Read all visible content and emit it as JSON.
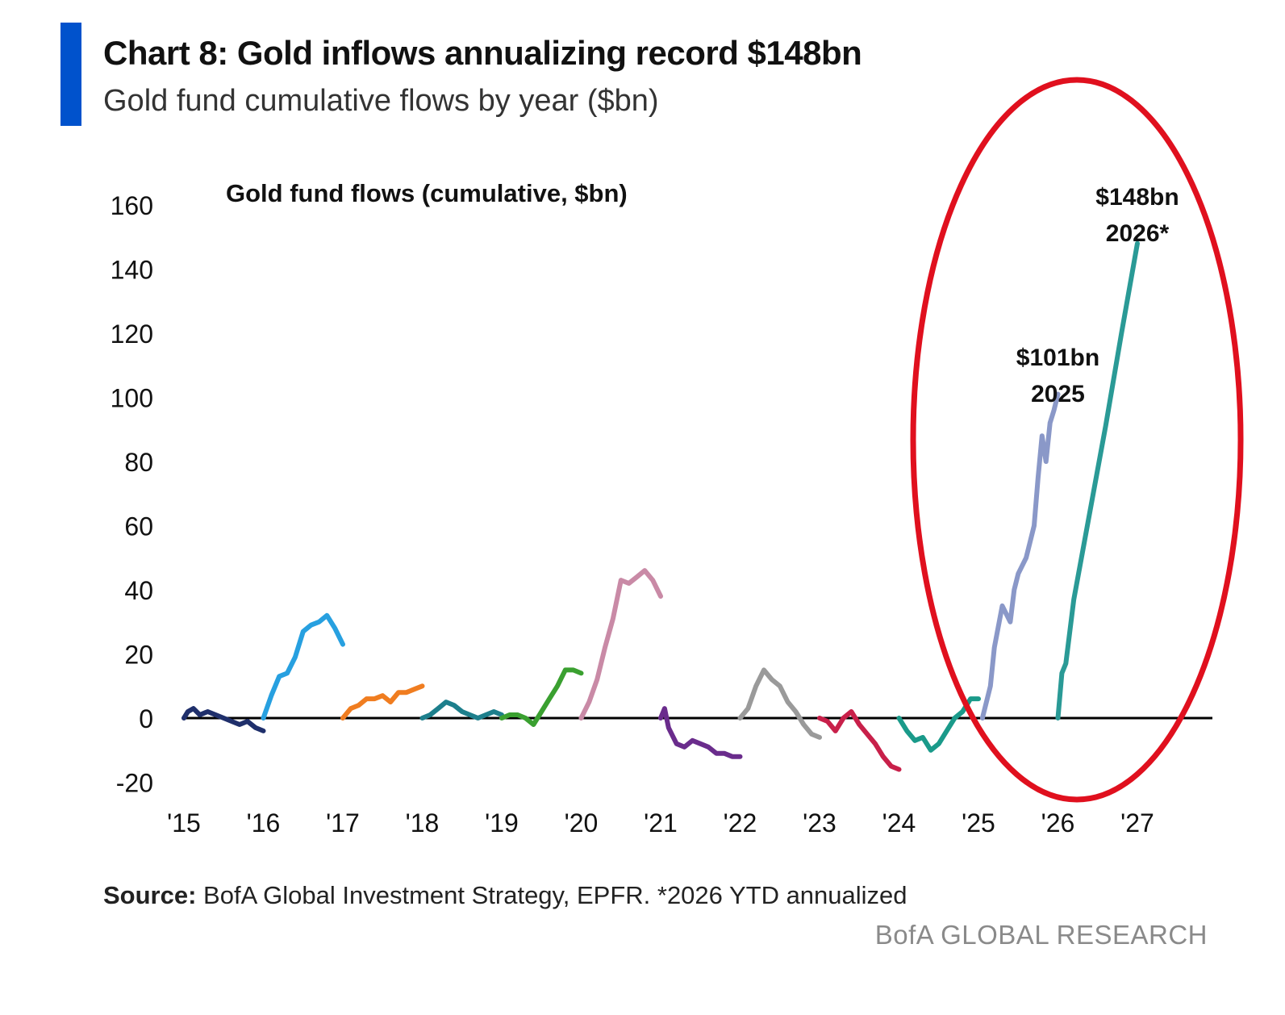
{
  "header": {
    "title": "Chart 8: Gold inflows annualizing record $148bn",
    "subtitle": "Gold fund cumulative flows by year ($bn)"
  },
  "footer": {
    "source_label": "Source:",
    "source_text": " BofA Global Investment Strategy, EPFR. *2026 YTD annualized",
    "brand": "BofA GLOBAL RESEARCH"
  },
  "colors": {
    "accent": "#0052cc",
    "highlight": "#e0101e"
  },
  "chart_data": {
    "type": "line",
    "title": "Gold fund flows (cumulative, $bn)",
    "xlabel": "",
    "ylabel": "",
    "xlim": [
      2015,
      2028
    ],
    "ylim": [
      -20,
      160
    ],
    "yticks": [
      -20,
      0,
      20,
      40,
      60,
      80,
      100,
      120,
      140,
      160
    ],
    "ytick_labels": [
      "-20",
      "0",
      "20",
      "40",
      "60",
      "80",
      "100",
      "120",
      "140",
      "160"
    ],
    "xticks": [
      2015,
      2016,
      2017,
      2018,
      2019,
      2020,
      2021,
      2022,
      2023,
      2024,
      2025,
      2026,
      2027
    ],
    "xtick_labels": [
      "'15",
      "'16",
      "'17",
      "'18",
      "'19",
      "'20",
      "'21",
      "'22",
      "'23",
      "'24",
      "'25",
      "'26",
      "'27"
    ],
    "series": [
      {
        "name": "2015",
        "color": "#1f2f6b",
        "x": [
          2015,
          2015.05,
          2015.12,
          2015.2,
          2015.3,
          2015.4,
          2015.5,
          2015.6,
          2015.7,
          2015.8,
          2015.9,
          2016.0
        ],
        "y": [
          0,
          2,
          3,
          1,
          2,
          1,
          0,
          -1,
          -2,
          -1,
          -3,
          -4
        ]
      },
      {
        "name": "2016",
        "color": "#27a0e0",
        "x": [
          2016,
          2016.1,
          2016.2,
          2016.3,
          2016.4,
          2016.5,
          2016.6,
          2016.7,
          2016.8,
          2016.9,
          2017.0
        ],
        "y": [
          0,
          7,
          13,
          14,
          19,
          27,
          29,
          30,
          32,
          28,
          23
        ]
      },
      {
        "name": "2017",
        "color": "#f07d20",
        "x": [
          2017,
          2017.1,
          2017.2,
          2017.3,
          2017.4,
          2017.5,
          2017.6,
          2017.7,
          2017.8,
          2017.9,
          2018.0
        ],
        "y": [
          0,
          3,
          4,
          6,
          6,
          7,
          5,
          8,
          8,
          9,
          10
        ]
      },
      {
        "name": "2018",
        "color": "#1d7f8c",
        "x": [
          2018,
          2018.1,
          2018.2,
          2018.3,
          2018.4,
          2018.5,
          2018.6,
          2018.7,
          2018.8,
          2018.9,
          2019.0
        ],
        "y": [
          0,
          1,
          3,
          5,
          4,
          2,
          1,
          0,
          1,
          2,
          1
        ]
      },
      {
        "name": "2019",
        "color": "#3aa030",
        "x": [
          2019,
          2019.1,
          2019.2,
          2019.3,
          2019.4,
          2019.5,
          2019.6,
          2019.7,
          2019.8,
          2019.9,
          2020.0
        ],
        "y": [
          0,
          1,
          1,
          0,
          -2,
          2,
          6,
          10,
          15,
          15,
          14
        ]
      },
      {
        "name": "2020",
        "color": "#c98aa6",
        "x": [
          2020,
          2020.1,
          2020.2,
          2020.3,
          2020.4,
          2020.5,
          2020.6,
          2020.7,
          2020.8,
          2020.9,
          2021.0
        ],
        "y": [
          0,
          5,
          12,
          22,
          31,
          43,
          42,
          44,
          46,
          43,
          38
        ]
      },
      {
        "name": "2021",
        "color": "#6a2c8c",
        "x": [
          2021,
          2021.05,
          2021.1,
          2021.2,
          2021.3,
          2021.4,
          2021.5,
          2021.6,
          2021.7,
          2021.8,
          2021.9,
          2022.0
        ],
        "y": [
          0,
          3,
          -3,
          -8,
          -9,
          -7,
          -8,
          -9,
          -11,
          -11,
          -12,
          -12
        ]
      },
      {
        "name": "2022",
        "color": "#9a9a9a",
        "x": [
          2022,
          2022.1,
          2022.2,
          2022.3,
          2022.4,
          2022.5,
          2022.6,
          2022.7,
          2022.8,
          2022.9,
          2023.0
        ],
        "y": [
          0,
          3,
          10,
          15,
          12,
          10,
          5,
          2,
          -2,
          -5,
          -6
        ]
      },
      {
        "name": "2023",
        "color": "#c8204a",
        "x": [
          2023,
          2023.1,
          2023.2,
          2023.3,
          2023.4,
          2023.5,
          2023.6,
          2023.7,
          2023.8,
          2023.9,
          2024.0
        ],
        "y": [
          0,
          -1,
          -4,
          0,
          2,
          -2,
          -5,
          -8,
          -12,
          -15,
          -16
        ]
      },
      {
        "name": "2024",
        "color": "#1a9a8a",
        "x": [
          2024,
          2024.1,
          2024.2,
          2024.3,
          2024.4,
          2024.5,
          2024.6,
          2024.7,
          2024.8,
          2024.9,
          2025.0
        ],
        "y": [
          0,
          -4,
          -7,
          -6,
          -10,
          -8,
          -4,
          0,
          2,
          6,
          6
        ]
      },
      {
        "name": "2025",
        "color": "#8a98c8",
        "x": [
          2025.05,
          2025.15,
          2025.2,
          2025.3,
          2025.4,
          2025.45,
          2025.5,
          2025.6,
          2025.7,
          2025.75,
          2025.8,
          2025.85,
          2025.9,
          2025.95,
          2026.0
        ],
        "y": [
          0,
          10,
          22,
          35,
          30,
          40,
          45,
          50,
          60,
          75,
          88,
          80,
          92,
          96,
          101
        ]
      },
      {
        "name": "2026",
        "color": "#2a9a96",
        "x": [
          2026,
          2026.05,
          2026.1,
          2026.2,
          2026.4,
          2026.6,
          2026.8,
          2027.0
        ],
        "y": [
          0,
          14,
          17,
          37,
          64,
          91,
          120,
          148
        ]
      }
    ],
    "annotations": [
      {
        "label": "$101bn",
        "label2": "2025",
        "x": 2026.0,
        "y": 110
      },
      {
        "label": "$148bn",
        "label2": "2026*",
        "x": 2027.0,
        "y": 160
      }
    ]
  }
}
